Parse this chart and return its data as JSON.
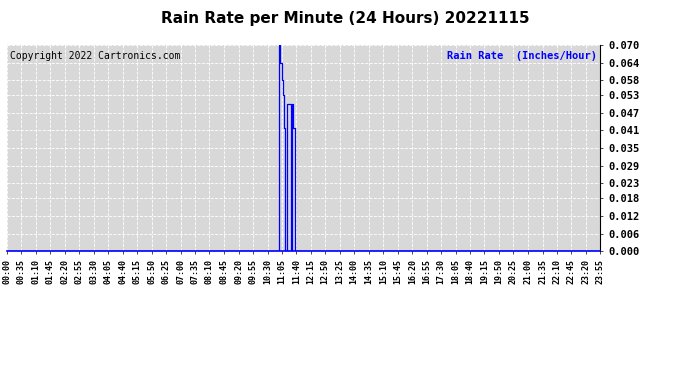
{
  "title": "Rain Rate per Minute (24 Hours) 20221115",
  "copyright_text": "Copyright 2022 Cartronics.com",
  "legend_label": "Rain Rate  (Inches/Hour)",
  "title_color": "#000000",
  "copyright_color": "#000000",
  "ylabel_color": "#0000ff",
  "line_color": "#0000ff",
  "background_color": "#ffffff",
  "plot_bg_color": "#d8d8d8",
  "grid_color": "#ffffff",
  "ylim": [
    0.0,
    0.07
  ],
  "yticks": [
    0.0,
    0.006,
    0.012,
    0.018,
    0.023,
    0.029,
    0.035,
    0.041,
    0.047,
    0.053,
    0.058,
    0.064,
    0.07
  ],
  "total_minutes": 1440,
  "xtick_labels": [
    "00:00",
    "00:35",
    "01:10",
    "01:45",
    "02:20",
    "02:55",
    "03:30",
    "04:05",
    "04:40",
    "05:15",
    "05:50",
    "06:25",
    "07:00",
    "07:35",
    "08:10",
    "08:45",
    "09:20",
    "09:55",
    "10:30",
    "11:05",
    "11:40",
    "12:15",
    "12:50",
    "13:25",
    "14:00",
    "14:35",
    "15:10",
    "15:45",
    "16:20",
    "16:55",
    "17:30",
    "18:05",
    "18:40",
    "19:15",
    "19:50",
    "20:25",
    "21:00",
    "21:35",
    "22:10",
    "22:45",
    "23:20",
    "23:55"
  ],
  "step_points": [
    [
      0,
      0.0
    ],
    [
      660,
      0.0
    ],
    [
      660,
      0.07
    ],
    [
      663,
      0.07
    ],
    [
      663,
      0.064
    ],
    [
      666,
      0.064
    ],
    [
      666,
      0.058
    ],
    [
      670,
      0.058
    ],
    [
      670,
      0.053
    ],
    [
      672,
      0.053
    ],
    [
      672,
      0.042
    ],
    [
      675,
      0.042
    ],
    [
      675,
      0.0
    ],
    [
      680,
      0.0
    ],
    [
      680,
      0.05
    ],
    [
      688,
      0.05
    ],
    [
      688,
      0.0
    ],
    [
      691,
      0.0
    ],
    [
      691,
      0.05
    ],
    [
      695,
      0.05
    ],
    [
      695,
      0.042
    ],
    [
      698,
      0.042
    ],
    [
      698,
      0.0
    ],
    [
      1439,
      0.0
    ]
  ]
}
